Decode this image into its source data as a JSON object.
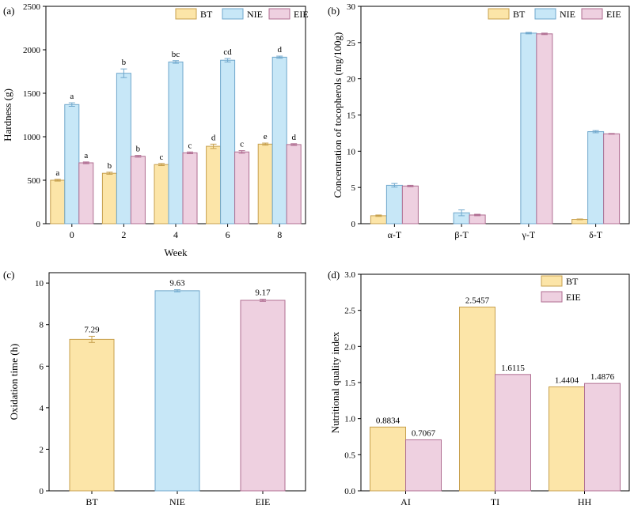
{
  "colors": {
    "BT": {
      "fill": "#FCE5A8",
      "stroke": "#C7A04E",
      "text": "#C7962C"
    },
    "NIE": {
      "fill": "#C7E7F7",
      "stroke": "#6FA7CC",
      "text": "#3A78B0"
    },
    "EIE": {
      "fill": "#EED0E0",
      "stroke": "#B06E92",
      "text": "#B5557F"
    }
  },
  "chart_data": [
    {
      "panel": "(a)",
      "type": "bar",
      "xlabel": "Week",
      "ylabel": "Hardness (g)",
      "ylim": [
        0,
        2500
      ],
      "yticks": [
        0,
        500,
        1000,
        1500,
        2000,
        2500
      ],
      "categories": [
        "0",
        "2",
        "4",
        "6",
        "8"
      ],
      "legend": [
        "BT",
        "NIE",
        "EIE"
      ],
      "legend_position": "top-right",
      "series": [
        {
          "name": "BT",
          "values": [
            500,
            580,
            680,
            890,
            915
          ],
          "errors": [
            10,
            12,
            12,
            25,
            12
          ],
          "labels": [
            "a",
            "b",
            "c",
            "d",
            "e"
          ]
        },
        {
          "name": "NIE",
          "values": [
            1370,
            1730,
            1860,
            1880,
            1915
          ],
          "errors": [
            20,
            50,
            15,
            20,
            12
          ],
          "labels": [
            "a",
            "b",
            "bc",
            "cd",
            "d"
          ]
        },
        {
          "name": "EIE",
          "values": [
            700,
            775,
            815,
            825,
            910
          ],
          "errors": [
            10,
            10,
            10,
            15,
            10
          ],
          "labels": [
            "a",
            "b",
            "c",
            "c",
            "d"
          ]
        }
      ]
    },
    {
      "panel": "(b)",
      "type": "bar",
      "xlabel": "",
      "ylabel": "Concentration of tocopherols (mg/100g)",
      "ylim": [
        0,
        30
      ],
      "yticks": [
        0,
        5,
        10,
        15,
        20,
        25,
        30
      ],
      "categories": [
        "α-T",
        "β-T",
        "γ-T",
        "δ-T"
      ],
      "legend": [
        "BT",
        "NIE",
        "EIE"
      ],
      "legend_position": "top-right",
      "series": [
        {
          "name": "BT",
          "values": [
            1.1,
            0,
            0,
            0.6
          ],
          "errors": [
            0.1,
            0,
            0,
            0.05
          ]
        },
        {
          "name": "NIE",
          "values": [
            5.3,
            1.5,
            26.3,
            12.7
          ],
          "errors": [
            0.25,
            0.4,
            0.1,
            0.15
          ]
        },
        {
          "name": "EIE",
          "values": [
            5.2,
            1.2,
            26.2,
            12.4
          ],
          "errors": [
            0.1,
            0.1,
            0.1,
            0.05
          ]
        }
      ]
    },
    {
      "panel": "(c)",
      "type": "bar",
      "xlabel": "",
      "ylabel": "Oxidation time (h)",
      "ylim": [
        0,
        10.5
      ],
      "yticks": [
        0,
        2,
        4,
        6,
        8,
        10
      ],
      "categories": [
        "BT",
        "NIE",
        "EIE"
      ],
      "series": [
        {
          "name": "",
          "values": [
            7.29,
            9.63,
            9.17
          ],
          "errors": [
            0.15,
            0.05,
            0.05
          ],
          "labels": [
            "7.29",
            "9.63",
            "9.17"
          ],
          "colorKeys": [
            "BT",
            "NIE",
            "EIE"
          ]
        }
      ]
    },
    {
      "panel": "(d)",
      "type": "bar",
      "xlabel": "",
      "ylabel": "Nutritional quality index",
      "ylim": [
        0,
        3.0
      ],
      "yticks": [
        0.0,
        0.5,
        1.0,
        1.5,
        2.0,
        2.5,
        3.0
      ],
      "categories": [
        "AI",
        "TI",
        "HH"
      ],
      "legend": [
        "BT",
        "EIE"
      ],
      "legend_position": "top-right",
      "series": [
        {
          "name": "BT",
          "values": [
            0.8834,
            2.5457,
            1.4404
          ],
          "labels": [
            "0.8834",
            "2.5457",
            "1.4404"
          ]
        },
        {
          "name": "EIE",
          "values": [
            0.7067,
            1.6115,
            1.4876
          ],
          "labels": [
            "0.7067",
            "1.6115",
            "1.4876"
          ]
        }
      ]
    }
  ]
}
